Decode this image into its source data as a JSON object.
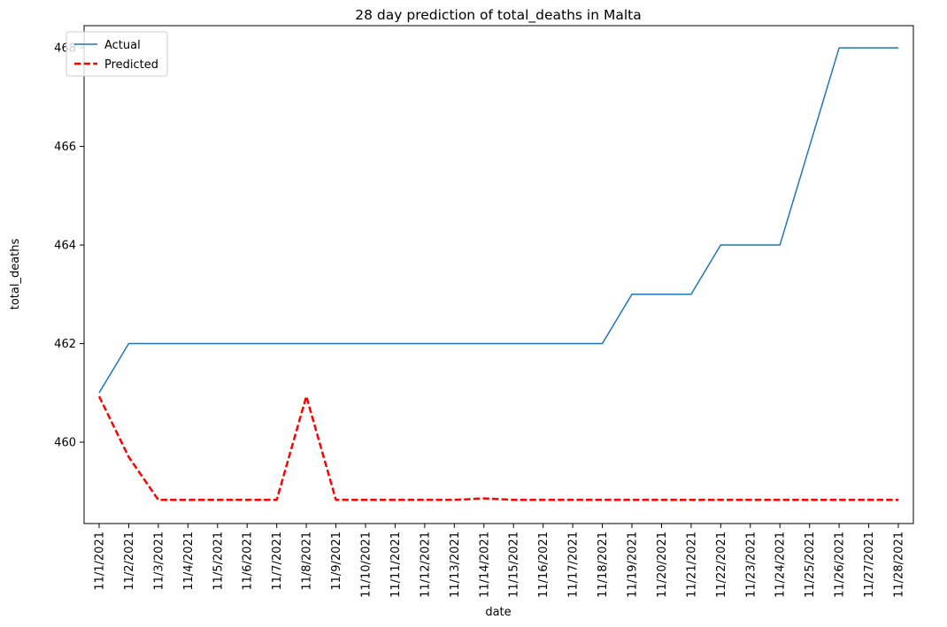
{
  "chart_data": {
    "type": "line",
    "title": "28 day prediction of total_deaths in Malta",
    "xlabel": "date",
    "ylabel": "total_deaths",
    "categories": [
      "11/1/2021",
      "11/2/2021",
      "11/3/2021",
      "11/4/2021",
      "11/5/2021",
      "11/6/2021",
      "11/7/2021",
      "11/8/2021",
      "11/9/2021",
      "11/10/2021",
      "11/11/2021",
      "11/12/2021",
      "11/13/2021",
      "11/14/2021",
      "11/15/2021",
      "11/16/2021",
      "11/17/2021",
      "11/18/2021",
      "11/19/2021",
      "11/20/2021",
      "11/21/2021",
      "11/22/2021",
      "11/23/2021",
      "11/24/2021",
      "11/25/2021",
      "11/26/2021",
      "11/27/2021",
      "11/28/2021"
    ],
    "yticks": [
      460,
      462,
      464,
      466,
      468
    ],
    "ylim": [
      458.35,
      468.45
    ],
    "grid": false,
    "legend_position": "top-left",
    "series": [
      {
        "name": "Actual",
        "color": "#1f77b4",
        "style": "solid",
        "values": [
          461,
          462,
          462,
          462,
          462,
          462,
          462,
          462,
          462,
          462,
          462,
          462,
          462,
          462,
          462,
          462,
          462,
          462,
          463,
          463,
          463,
          464,
          464,
          464,
          466,
          468,
          468,
          468
        ]
      },
      {
        "name": "Predicted",
        "color": "#ff0000",
        "style": "dashed",
        "values": [
          460.93,
          459.7,
          458.83,
          458.83,
          458.83,
          458.83,
          458.83,
          460.93,
          458.83,
          458.83,
          458.83,
          458.83,
          458.83,
          458.86,
          458.83,
          458.83,
          458.83,
          458.83,
          458.83,
          458.83,
          458.83,
          458.83,
          458.83,
          458.83,
          458.83,
          458.83,
          458.83,
          458.83
        ]
      }
    ]
  }
}
